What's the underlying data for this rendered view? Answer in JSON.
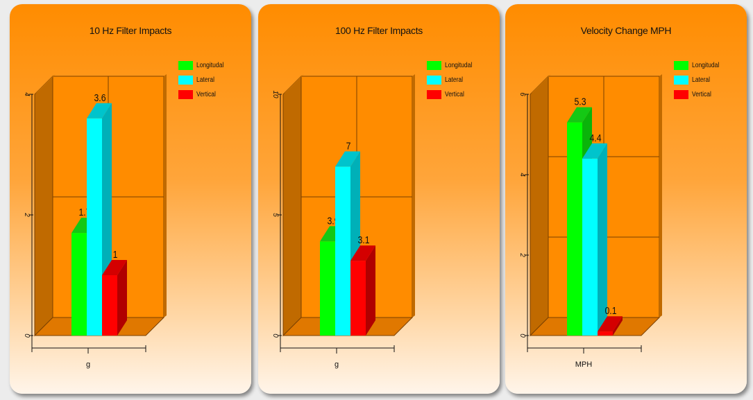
{
  "chart_data": [
    {
      "type": "bar",
      "title": "10 Hz Filter Impacts",
      "categories": [
        "g"
      ],
      "series": [
        {
          "name": "Longitudal",
          "values": [
            1.7
          ],
          "label": "1.7"
        },
        {
          "name": "Lateral",
          "values": [
            3.6
          ],
          "label": "3.6"
        },
        {
          "name": "Vertical",
          "values": [
            1.0
          ],
          "label": "1"
        }
      ],
      "ylim": [
        0,
        4
      ],
      "yticks": [
        "0",
        "2",
        "4"
      ],
      "ytick_values": [
        0,
        2,
        4
      ],
      "grid": true,
      "legend": "top-right"
    },
    {
      "type": "bar",
      "title": "100 Hz Filter Impacts",
      "categories": [
        "g"
      ],
      "series": [
        {
          "name": "Longitudal",
          "values": [
            3.9
          ],
          "label": "3.9"
        },
        {
          "name": "Lateral",
          "values": [
            7.0
          ],
          "label": "7"
        },
        {
          "name": "Vertical",
          "values": [
            3.1
          ],
          "label": "3.1"
        }
      ],
      "ylim": [
        0,
        10
      ],
      "yticks": [
        "0",
        "5",
        "10"
      ],
      "ytick_values": [
        0,
        5,
        10
      ],
      "grid": true,
      "legend": "top-right"
    },
    {
      "type": "bar",
      "title": "Velocity Change MPH",
      "categories": [
        "MPH"
      ],
      "series": [
        {
          "name": "Longitudal",
          "values": [
            5.3
          ],
          "label": "5.3"
        },
        {
          "name": "Lateral",
          "values": [
            4.4
          ],
          "label": "4.4"
        },
        {
          "name": "Vertical",
          "values": [
            0.1
          ],
          "label": "0.1"
        }
      ],
      "ylim": [
        0,
        6
      ],
      "yticks": [
        "0",
        "2",
        "4",
        "6"
      ],
      "ytick_values": [
        0,
        2,
        4,
        6
      ],
      "grid": true,
      "legend": "top-right"
    }
  ],
  "colors": {
    "Longitudal": {
      "front": "#00ff00",
      "top": "#14c814",
      "side": "#0ab40a"
    },
    "Lateral": {
      "front": "#00ffff",
      "top": "#00c4cc",
      "side": "#00b0b8"
    },
    "Vertical": {
      "front": "#ff0000",
      "top": "#d40000",
      "side": "#b00000"
    },
    "wall": "#c06a00",
    "plot": "#ff8c00",
    "floor": "#e07800"
  }
}
